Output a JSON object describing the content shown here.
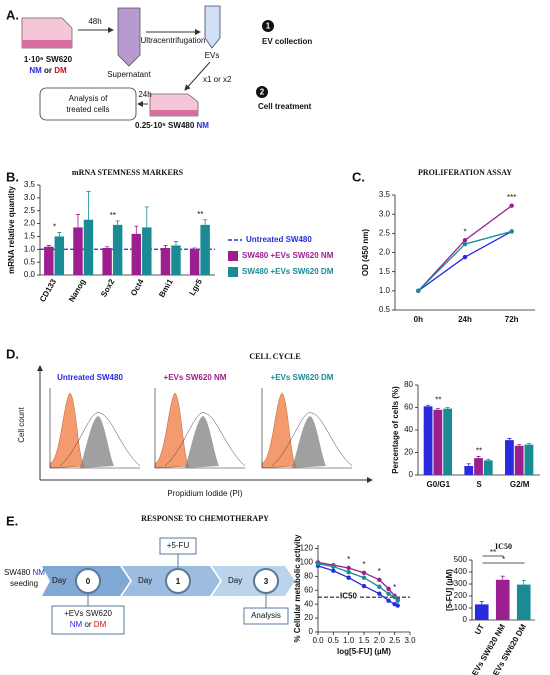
{
  "panels": [
    "A.",
    "B.",
    "C.",
    "D.",
    "E."
  ],
  "diagram_a": {
    "time1": "48h",
    "donor": "1·10⁶ SW620",
    "donor_nm": "NM",
    "donor_or": "or",
    "donor_dm": "DM",
    "ultra": "Ultracentrifugation",
    "supernatant": "Supernatant",
    "evs": "EVs",
    "step1": "1",
    "step1_label": "EV collection",
    "dose": "x1 or x2",
    "step2": "2",
    "step2_label": "Cell treatment",
    "time2": "24h",
    "analysis": [
      "Analysis of",
      "treated cells"
    ],
    "recipient": "0.25·10⁶ SW480",
    "recipient_nm": "NM"
  },
  "cell_cycle": {
    "title": "CELL CYCLE",
    "histograms": [
      "Untreated SW480",
      "+EVs SW620 NM",
      "+EVs SW620 DM"
    ],
    "ylabel": "Cell count",
    "xlabel": "Propidium Iodide (PI)"
  },
  "timeline": {
    "title": "RESPONSE TO CHEMOTHERAPY",
    "seeding": [
      "SW480",
      "NM",
      "seeding"
    ],
    "day": "Day",
    "days": [
      "0",
      "1",
      "3"
    ],
    "drug": "+5-FU",
    "evs": "+EVs SW620",
    "evs_nm": "NM",
    "evs_or": "or",
    "evs_dm": "DM",
    "analysis": "Analysis"
  },
  "chart_data": [
    {
      "type": "bar",
      "title": "mRNA STEMNESS MARKERS",
      "ylabel": "mRNA relative quantity",
      "categories": [
        "CD133",
        "Nanog",
        "Sox2",
        "Oct4",
        "Bmi1",
        "Lgr5"
      ],
      "series": [
        {
          "name": "SW480 +EVs SW620 NM",
          "color": "#9b1f8f",
          "values": [
            1.1,
            1.85,
            1.05,
            1.6,
            1.05,
            1.0
          ],
          "errors": [
            0.05,
            0.5,
            0.05,
            0.3,
            0.1,
            0.05
          ]
        },
        {
          "name": "SW480 +EVs SW620 DM",
          "color": "#1a8a94",
          "values": [
            1.5,
            2.15,
            1.95,
            1.85,
            1.15,
            1.95
          ],
          "errors": [
            0.15,
            1.1,
            0.15,
            0.8,
            0.15,
            0.2
          ]
        }
      ],
      "reference": {
        "name": "Untreated SW480",
        "value": 1,
        "color": "#2a2ae0"
      },
      "annotations": [
        {
          "text": "*",
          "category": "CD133"
        },
        {
          "text": "**",
          "category": "Sox2"
        },
        {
          "text": "**",
          "category": "Lgr5"
        }
      ],
      "ylim": [
        0,
        3.5
      ],
      "yticks": [
        {
          "value": 0,
          "label": "0.0"
        },
        0.5,
        {
          "value": 1,
          "label": "1.0"
        },
        1.5,
        {
          "value": 2,
          "label": "2.0"
        },
        2.5,
        {
          "value": 3,
          "label": "3.0"
        },
        3.5
      ],
      "legend": "right"
    },
    {
      "type": "line",
      "title": "PROLIFERATION ASSAY",
      "ylabel": "OD (450 nm)",
      "categories": [
        "0h",
        "24h",
        "72h"
      ],
      "series": [
        {
          "name": "Untreated SW480",
          "color": "#2a2ae0",
          "values": [
            1.0,
            1.88,
            2.55
          ]
        },
        {
          "name": "SW480 +EVs SW620 NM",
          "color": "#9b1f8f",
          "values": [
            1.0,
            2.32,
            3.22
          ]
        },
        {
          "name": "SW480 +EVs SW620 DM",
          "color": "#1a8a94",
          "values": [
            1.0,
            2.22,
            2.55
          ]
        }
      ],
      "annotations": [
        {
          "text": "*",
          "category": "24h"
        },
        {
          "text": "***",
          "category": "72h"
        }
      ],
      "ylim": [
        0.5,
        3.5
      ],
      "yticks": [
        0.5,
        {
          "value": 1,
          "label": "1.0"
        },
        1.5,
        {
          "value": 2,
          "label": "2.0"
        },
        2.5,
        {
          "value": 3,
          "label": "3.0"
        },
        3.5
      ]
    },
    {
      "type": "bar",
      "ylabel": "Percentage of cells (%)",
      "categories": [
        "G0/G1",
        "S",
        "G2/M"
      ],
      "series": [
        {
          "name": "Untreated SW480",
          "color": "#2a2ae0",
          "values": [
            61,
            8,
            31
          ],
          "errors": [
            1,
            2,
            1.5
          ]
        },
        {
          "name": "SW480 +EVs SW620 NM",
          "color": "#9b1f8f",
          "values": [
            58,
            15,
            26
          ],
          "errors": [
            1,
            1.5,
            1
          ]
        },
        {
          "name": "SW480 +EVs SW620 DM",
          "color": "#1a8a94",
          "values": [
            59,
            13,
            27
          ],
          "errors": [
            1,
            1,
            1
          ]
        }
      ],
      "annotations": [
        {
          "text": "**",
          "category": "G0/G1"
        },
        {
          "text": "**",
          "category": "S"
        }
      ],
      "ylim": [
        0,
        80
      ],
      "yticks": [
        0,
        20,
        40,
        60,
        80
      ]
    },
    {
      "type": "line",
      "ylabel": "% Cellular metabolic activity",
      "xlabel": "log[5-FU] (µM)",
      "x": [
        0,
        0.5,
        1,
        1.5,
        2,
        2.3,
        2.5,
        2.6
      ],
      "series": [
        {
          "name": "Untreated SW480",
          "color": "#2a2ae0",
          "values": [
            95,
            88,
            78,
            66,
            55,
            45,
            40,
            38
          ]
        },
        {
          "name": "SW480 +EVs SW620 NM",
          "color": "#9b1f8f",
          "values": [
            100,
            96,
            92,
            85,
            75,
            62,
            52,
            48
          ]
        },
        {
          "name": "SW480 +EVs SW620 DM",
          "color": "#1a8a94",
          "values": [
            98,
            94,
            86,
            78,
            65,
            55,
            50,
            45
          ]
        }
      ],
      "reference": {
        "name": "IC50",
        "value": 50,
        "color": "#222"
      },
      "annotations": [
        {
          "text": "*",
          "x": 1
        },
        {
          "text": "*",
          "x": 1.5
        },
        {
          "text": "*",
          "x": 2
        },
        {
          "text": "*",
          "x": 2.5
        }
      ],
      "xlim": [
        0,
        3
      ],
      "xticks": [
        {
          "value": 0,
          "label": "0.0"
        },
        0.5,
        {
          "value": 1,
          "label": "1.0"
        },
        1.5,
        {
          "value": 2,
          "label": "2.0"
        },
        2.5,
        {
          "value": 3,
          "label": "3.0"
        }
      ],
      "ylim": [
        0,
        125
      ],
      "yticks": [
        0,
        20,
        40,
        60,
        80,
        100,
        120
      ]
    },
    {
      "type": "bar",
      "title": "IC50",
      "ylabel": "[5-FU] (µM)",
      "categories": [
        "UT",
        "+ EVs SW620 NM",
        "+ EVs SW620 DM"
      ],
      "values": [
        130,
        335,
        295
      ],
      "errors": [
        25,
        30,
        35
      ],
      "colors": [
        "#2a2ae0",
        "#9b1f8f",
        "#1a8a94"
      ],
      "annotations": [
        {
          "text": "**",
          "from": "UT",
          "to": "+ EVs SW620 NM"
        },
        {
          "text": "*",
          "from": "UT",
          "to": "+ EVs SW620 DM"
        }
      ],
      "ylim": [
        0,
        500
      ],
      "yticks": [
        0,
        100,
        200,
        300,
        400,
        500
      ]
    }
  ]
}
